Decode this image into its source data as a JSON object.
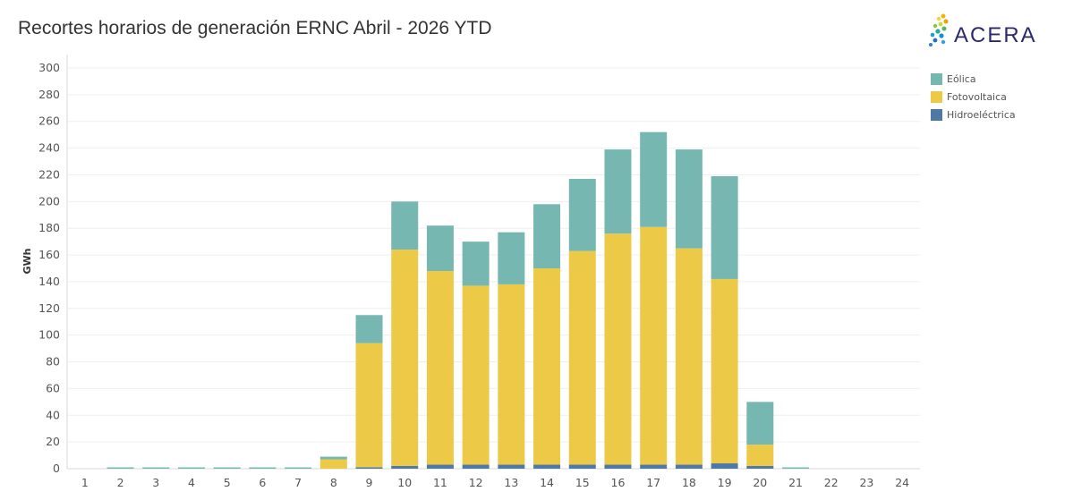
{
  "chart_data": {
    "type": "bar",
    "stacked": true,
    "title": "Recortes horarios de generación ERNC Abril - 2026 YTD",
    "xlabel": "",
    "ylabel": "GWh",
    "ylim": [
      0,
      300
    ],
    "yticks": [
      0,
      20,
      40,
      60,
      80,
      100,
      120,
      140,
      160,
      180,
      200,
      220,
      240,
      260,
      280,
      300
    ],
    "grid": true,
    "legend_position": "right",
    "categories": [
      "1",
      "2",
      "3",
      "4",
      "5",
      "6",
      "7",
      "8",
      "9",
      "10",
      "11",
      "12",
      "13",
      "14",
      "15",
      "16",
      "17",
      "18",
      "19",
      "20",
      "21",
      "22",
      "23",
      "24"
    ],
    "series": [
      {
        "name": "Hidroeléctrica",
        "color": "#4e79a7",
        "values": [
          0,
          0,
          0,
          0,
          0,
          0,
          0,
          0,
          1,
          2,
          3,
          3,
          3,
          3,
          3,
          3,
          3,
          3,
          4,
          2,
          0,
          0,
          0,
          0
        ]
      },
      {
        "name": "Fotovoltaica",
        "color": "#edc948",
        "values": [
          0,
          0,
          0,
          0,
          0,
          0,
          0,
          7,
          93,
          162,
          145,
          134,
          135,
          147,
          160,
          173,
          178,
          162,
          138,
          16,
          0,
          0,
          0,
          0
        ]
      },
      {
        "name": "Eólica",
        "color": "#76b7b2",
        "values": [
          0,
          1,
          1,
          1,
          1,
          1,
          1,
          2,
          21,
          36,
          34,
          33,
          39,
          48,
          54,
          63,
          71,
          74,
          77,
          32,
          1,
          0,
          0,
          0
        ]
      }
    ],
    "legend_order": [
      "Eólica",
      "Fotovoltaica",
      "Hidroeléctrica"
    ]
  },
  "logo": {
    "text": "ACERA"
  }
}
